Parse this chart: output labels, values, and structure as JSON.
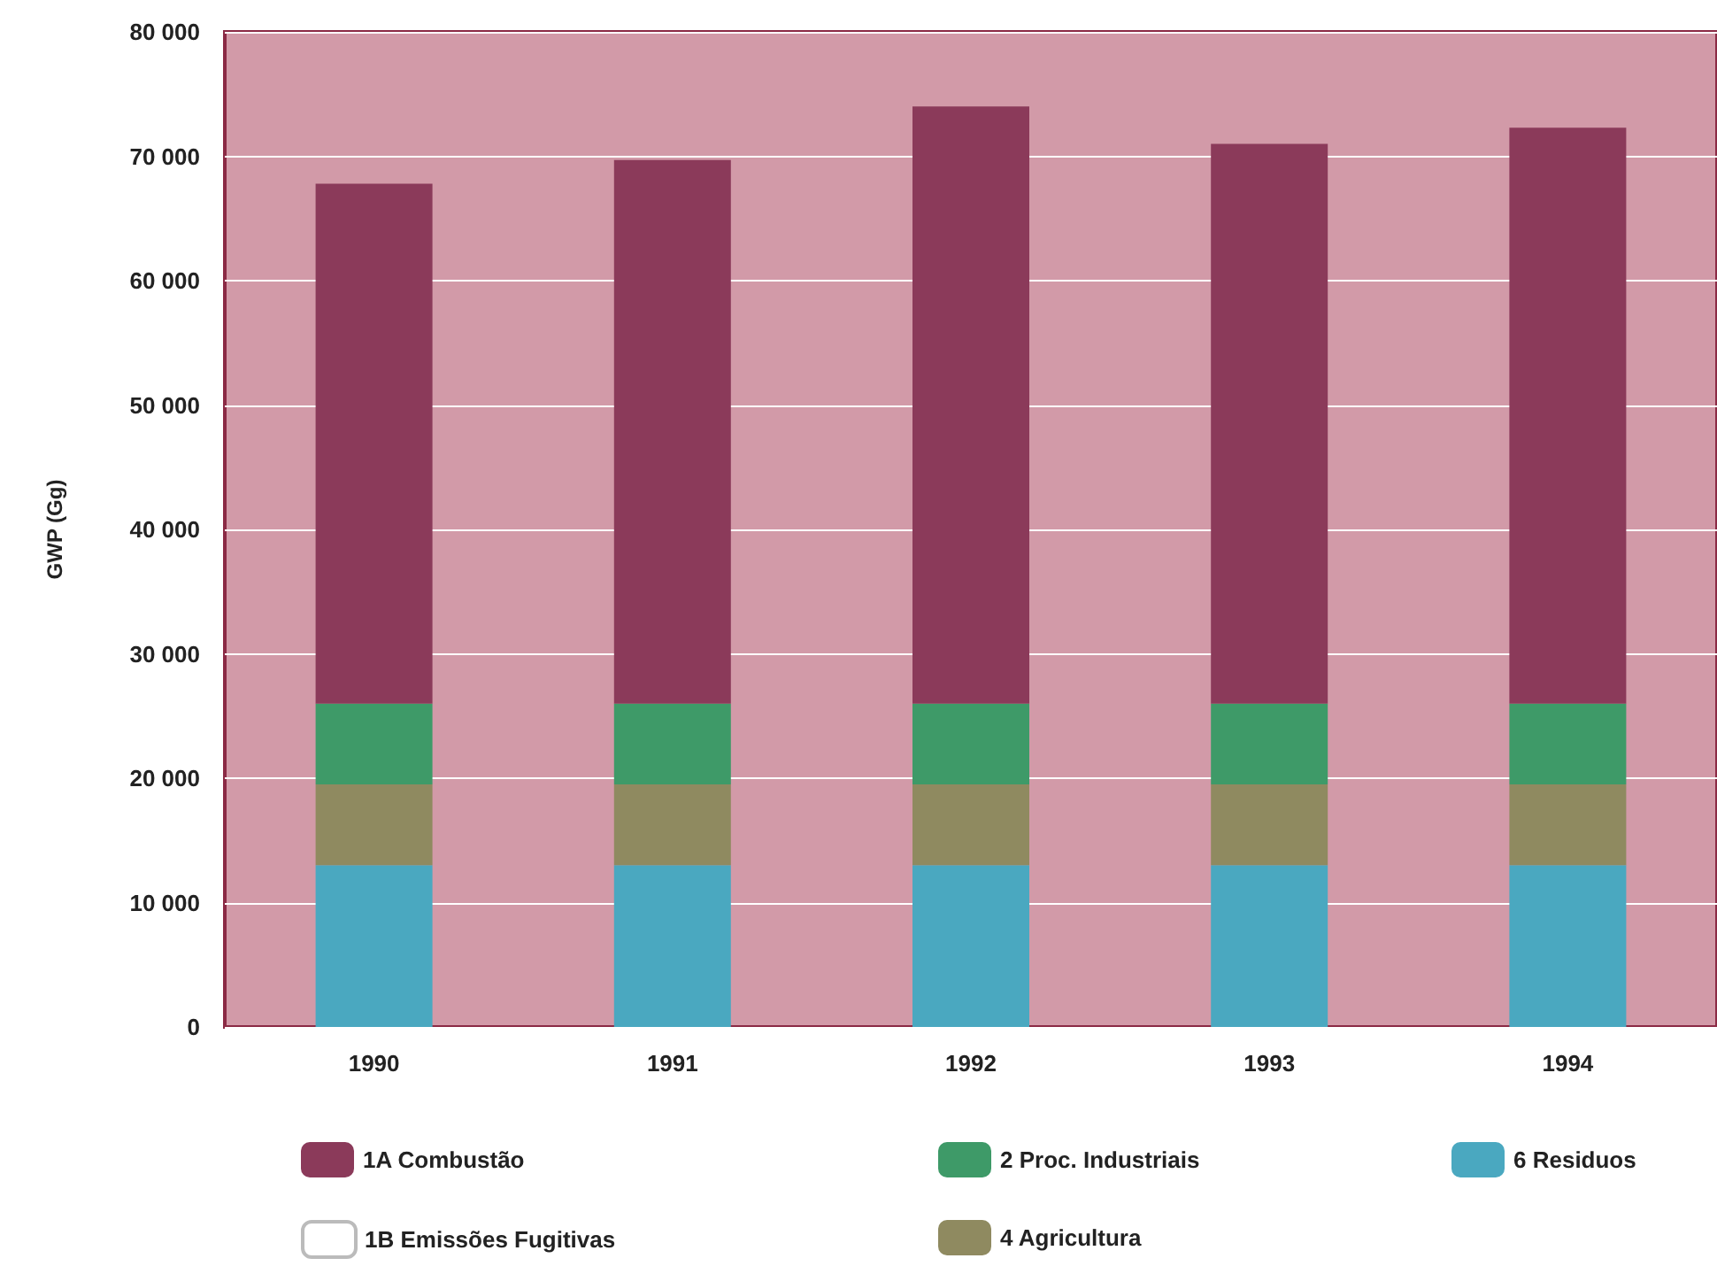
{
  "chart_data": {
    "type": "bar",
    "stacked": true,
    "ylabel": "GWP (Gg)",
    "categories": [
      "1990",
      "1991",
      "1992",
      "1993",
      "1994"
    ],
    "series": [
      {
        "name": "6 Residuos",
        "color": "#4aa8c0",
        "values": [
          13000,
          13000,
          13000,
          13000,
          13000
        ]
      },
      {
        "name": "4 Agricultura",
        "color": "#8f8a60",
        "values": [
          6500,
          6500,
          6500,
          6500,
          6500
        ]
      },
      {
        "name": "2 Proc. Industriais",
        "color": "#3e9a68",
        "values": [
          6500,
          6500,
          6500,
          6500,
          6500
        ]
      },
      {
        "name": "1B Emissões Fugitivas",
        "color": "#ffffff",
        "values": [
          null,
          null,
          null,
          null,
          null
        ]
      },
      {
        "name": "1A Combustão",
        "color": "#8b3a5a",
        "values": [
          41800,
          43700,
          48000,
          45000,
          46300
        ]
      }
    ],
    "ylim": [
      0,
      80000
    ],
    "yticks": [
      0,
      {
        "value": 10000,
        "label": "10 000"
      },
      {
        "value": 20000,
        "label": "20 000"
      },
      {
        "value": 30000,
        "label": "30 000"
      },
      {
        "value": 40000,
        "label": "40 000"
      },
      {
        "value": 50000,
        "label": "50 000"
      },
      {
        "value": 60000,
        "label": "60 000"
      },
      {
        "value": 70000,
        "label": "70 000"
      },
      {
        "value": 80000,
        "label": "80 000"
      }
    ],
    "grid": "y",
    "legend": "bottom"
  }
}
